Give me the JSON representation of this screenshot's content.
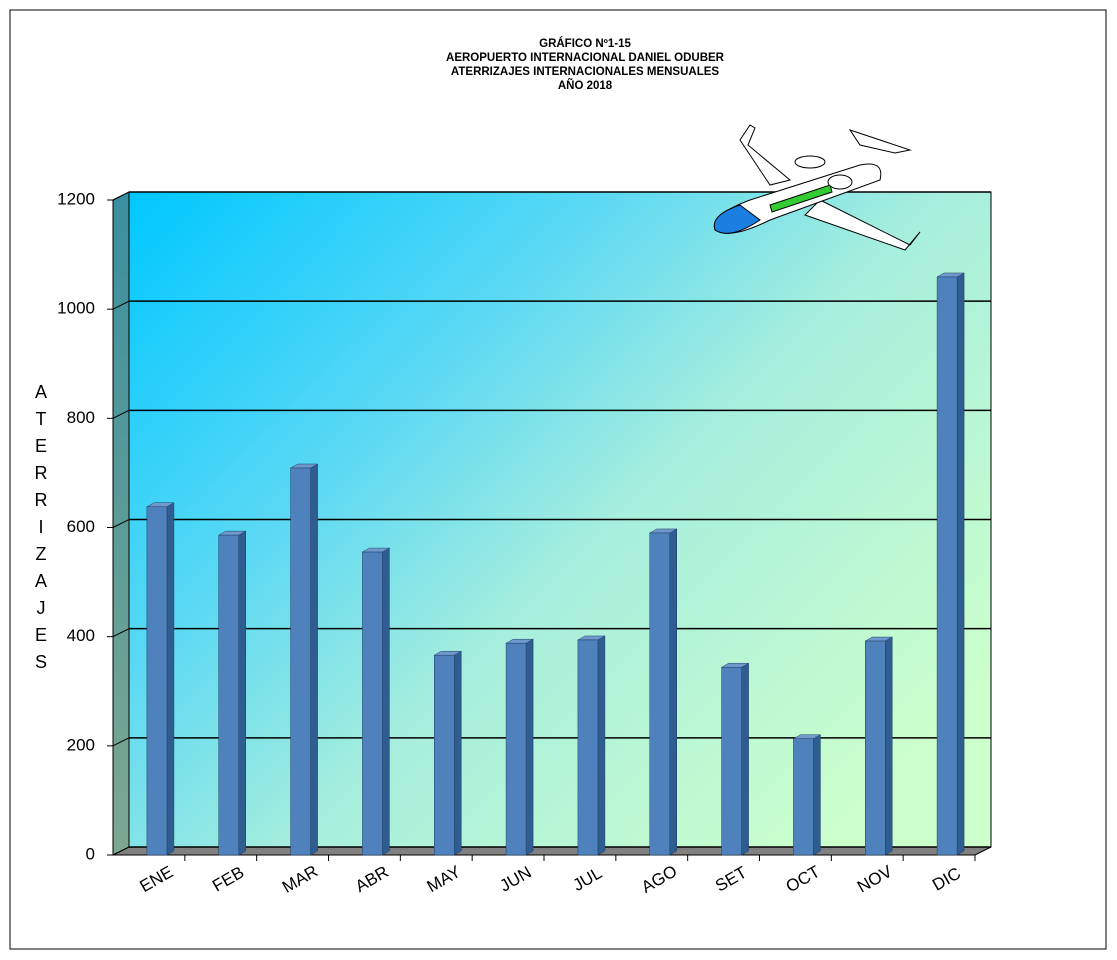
{
  "chart_data": {
    "type": "bar",
    "title": [
      "GRÁFICO Nº1-15",
      "AEROPUERTO INTERNACIONAL DANIEL ODUBER",
      "ATERRIZAJES INTERNACIONALES MENSUALES",
      "AÑO 2018"
    ],
    "y_label": "ATERRIZAJES",
    "categories": [
      "ENE",
      "FEB",
      "MAR",
      "ABR",
      "MAY",
      "JUN",
      "JUL",
      "AGO",
      "SET",
      "OCT",
      "NOV",
      "DIC"
    ],
    "values": [
      638,
      586,
      709,
      555,
      366,
      388,
      394,
      590,
      344,
      213,
      392,
      1059
    ],
    "color": "#4f81bd",
    "ylim": [
      0,
      1200
    ],
    "yticks": [
      0,
      200,
      400,
      600,
      800,
      1000,
      1200
    ],
    "grid": true
  }
}
